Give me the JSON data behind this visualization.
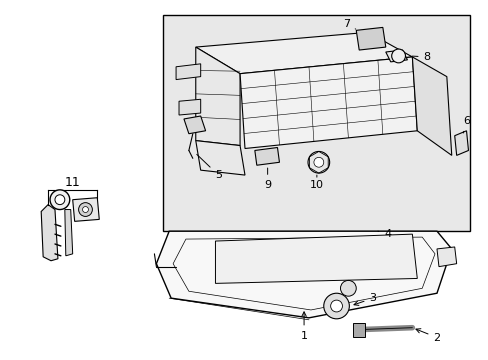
{
  "bg": "#ffffff",
  "lc": "#000000",
  "shaded": "#e8e8e8",
  "fig_w": 4.89,
  "fig_h": 3.6,
  "dpi": 100
}
